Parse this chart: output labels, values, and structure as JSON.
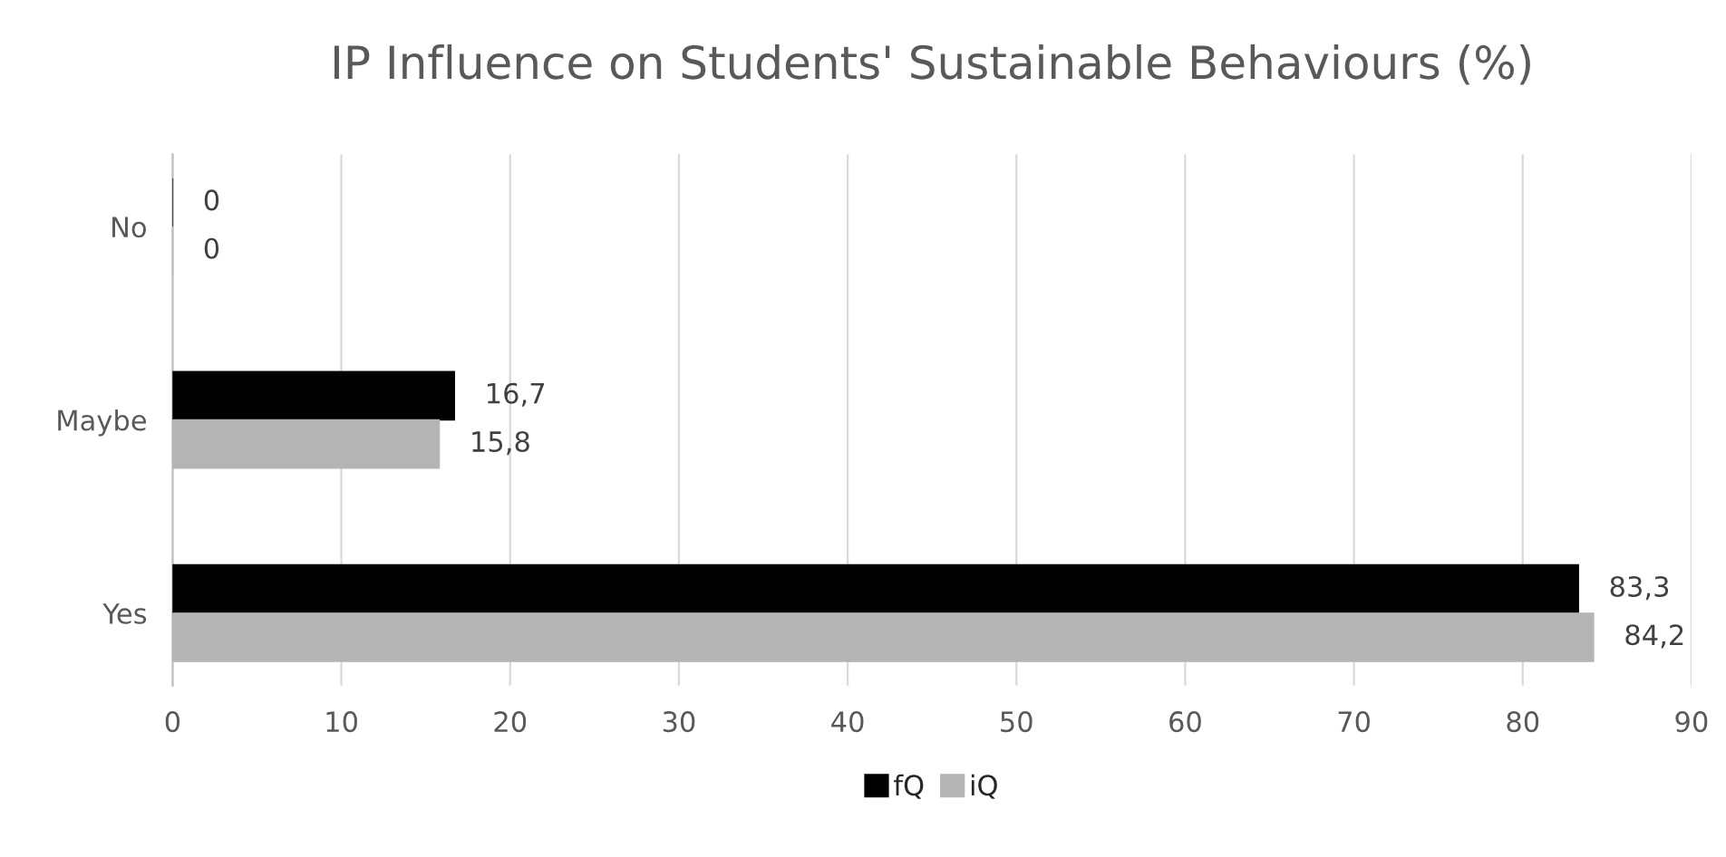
{
  "chart_data": {
    "type": "bar",
    "orientation": "horizontal",
    "title": "IP Influence on Students' Sustainable Behaviours (%)",
    "categories": [
      "No",
      "Maybe",
      "Yes"
    ],
    "series": [
      {
        "name": "fQ",
        "color": "#000000",
        "values": [
          0,
          16.7,
          83.3
        ],
        "value_labels": [
          "0",
          "16,7",
          "83,3"
        ]
      },
      {
        "name": "iQ",
        "color": "#b4b4b4",
        "values": [
          0,
          15.8,
          84.2
        ],
        "value_labels": [
          "0",
          "15,8",
          "84,2"
        ]
      }
    ],
    "xlim": [
      0,
      90
    ],
    "xticks": [
      0,
      10,
      20,
      30,
      40,
      50,
      60,
      70,
      80,
      90
    ],
    "grid": "x",
    "legend": "bottom"
  }
}
